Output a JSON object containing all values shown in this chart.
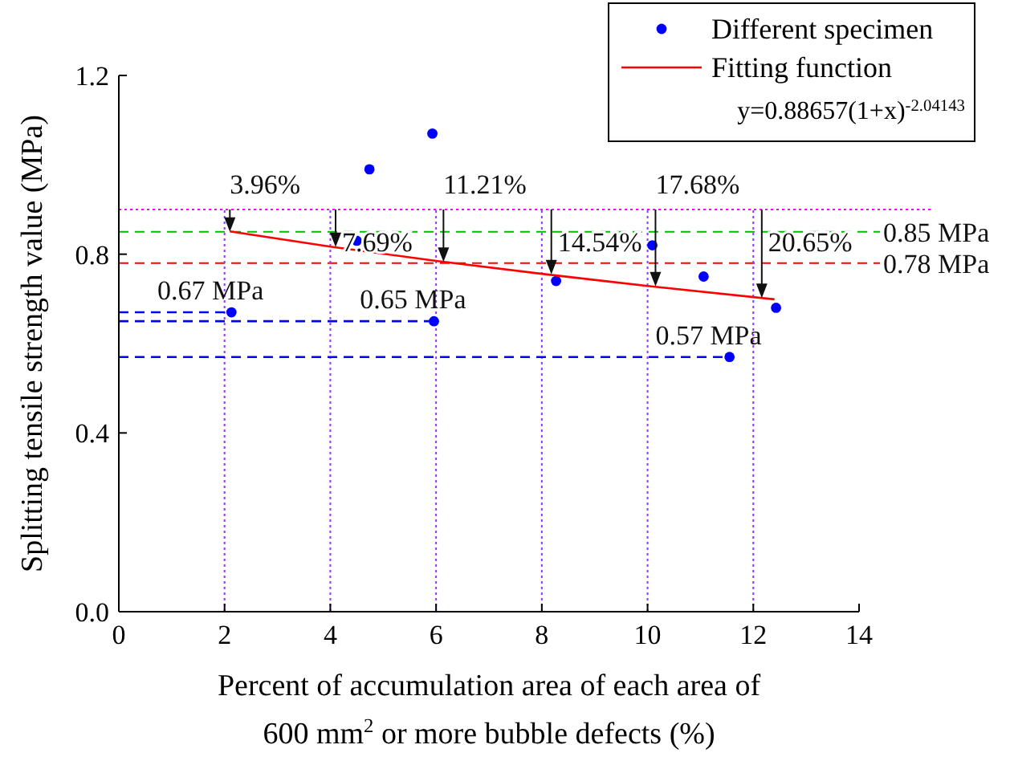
{
  "chart_data": {
    "type": "scatter",
    "xlabel": "Percent of accumulation area of each area of 600 mm$^{2}$ or more bubble defects (%)",
    "ylabel": "Splitting tensile strength value (MPa)",
    "xlim": [
      0,
      14
    ],
    "xticks": [
      0,
      2,
      4,
      6,
      8,
      10,
      12,
      14
    ],
    "ylim": [
      0,
      1.2
    ],
    "yticks": [
      {
        "value": 0,
        "label": "0.0"
      },
      0.4,
      0.8,
      1.2
    ],
    "legend": "top right",
    "grid": false,
    "series": [
      {
        "name": "Different specimen",
        "color": "#0000ff",
        "marker": "circle",
        "x": [
          2.13,
          4.5,
          4.74,
          5.93,
          5.96,
          8.27,
          10.09,
          11.06,
          11.55,
          12.43
        ],
        "values": [
          0.67,
          0.83,
          0.99,
          1.07,
          0.65,
          0.74,
          0.82,
          0.75,
          0.57,
          0.68
        ]
      },
      {
        "name": "Fitting function",
        "type": "line",
        "color": "#ff0000",
        "line_style": "solid",
        "marker": "none",
        "x": [
          2.1,
          4,
          6,
          8,
          10,
          12.4
        ],
        "values": [
          0.851,
          0.817,
          0.785,
          0.756,
          0.729,
          0.699
        ]
      },
      {
        "type": "line",
        "color": "#0000ff",
        "line_style": "dashed",
        "marker": "none",
        "x": [
          0,
          2.13
        ],
        "values": [
          0.67,
          0.67
        ]
      },
      {
        "type": "line",
        "color": "#0000ff",
        "line_style": "dashed",
        "marker": "none",
        "x": [
          0,
          5.96
        ],
        "values": [
          0.65,
          0.65
        ]
      },
      {
        "type": "line",
        "color": "#0000ff",
        "line_style": "dashed",
        "marker": "none",
        "x": [
          0,
          11.55
        ],
        "values": [
          0.57,
          0.57
        ]
      }
    ],
    "ref_lines": [
      {
        "axis": "y",
        "value": 0.9,
        "color": "#ff00ff",
        "line_style": "dotted"
      },
      {
        "axis": "y",
        "value": 0.85,
        "label": "0.85 MPa",
        "color": "#00bb00",
        "line_style": "dashed"
      },
      {
        "axis": "y",
        "value": 0.78,
        "label": "0.78 MPa",
        "color": "#ff0000",
        "line_style": "dashed"
      },
      {
        "axis": "x",
        "value": 2,
        "color": "#9933ff",
        "line_style": "dotted"
      },
      {
        "axis": "x",
        "value": 4,
        "color": "#9933ff",
        "line_style": "dotted"
      },
      {
        "axis": "x",
        "value": 6,
        "color": "#9933ff",
        "line_style": "dotted"
      },
      {
        "axis": "x",
        "value": 8,
        "color": "#9933ff",
        "line_style": "dotted"
      },
      {
        "axis": "x",
        "value": 10,
        "color": "#9933ff",
        "line_style": "dotted"
      },
      {
        "axis": "x",
        "value": 12,
        "color": "#9933ff",
        "line_style": "dotted"
      }
    ],
    "annotations": [
      "y=0.88657(1+x)$^{-2.04143}$",
      {
        "text": "3.96%",
        "x": 2.1,
        "y": 0.85
      },
      {
        "text": "7.69%",
        "x": 4.1,
        "y": 0.816
      },
      {
        "text": "11.21%",
        "x": 6.14,
        "y": 0.783
      },
      {
        "text": "14.54%",
        "x": 8.18,
        "y": 0.755
      },
      {
        "text": "17.68%",
        "x": 10.15,
        "y": 0.728
      },
      {
        "text": "20.65%",
        "x": 12.16,
        "y": 0.702
      },
      {
        "text": "0.67 MPa",
        "x": 2.13,
        "y": 0.67
      },
      {
        "text": "0.65 MPa",
        "x": 5.96,
        "y": 0.65
      },
      {
        "text": "0.57 MPa",
        "x": 11.55,
        "y": 0.57
      }
    ]
  }
}
